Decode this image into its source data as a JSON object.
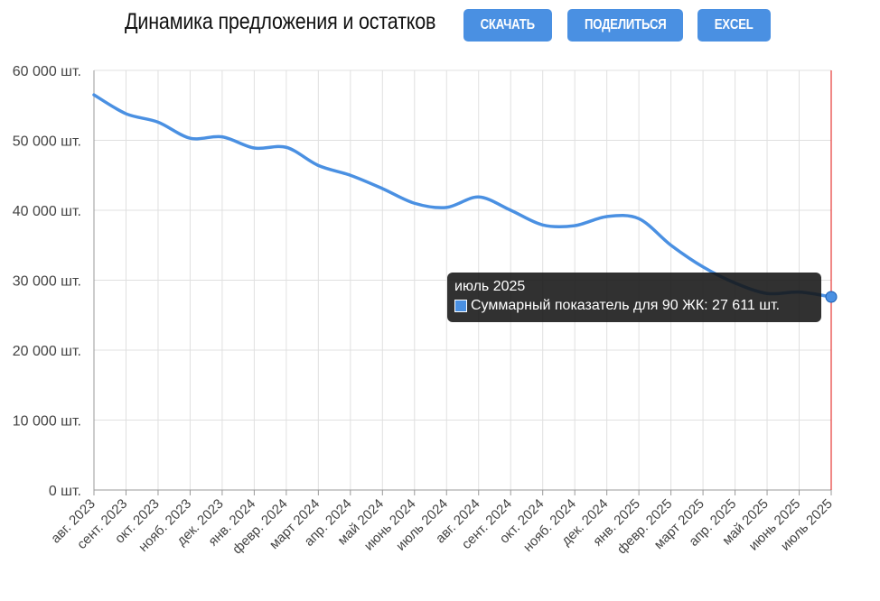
{
  "header": {
    "title": "Динамика предложения и остатков",
    "buttons": {
      "download": "СКАЧАТЬ",
      "share": "ПОДЕЛИТЬСЯ",
      "excel": "EXCEL"
    }
  },
  "colors": {
    "accent": "#4a90e2",
    "line": "#4a90e2",
    "grid": "#e0e0e0",
    "marker_line": "#e53935",
    "tooltip_bg": "#1e1e1e"
  },
  "chart_data": {
    "type": "line",
    "title": "Динамика предложения и остатков",
    "xlabel": "",
    "ylabel": "",
    "categories": [
      "авг. 2023",
      "сент. 2023",
      "окт. 2023",
      "нояб. 2023",
      "дек. 2023",
      "янв. 2024",
      "февр. 2024",
      "март 2024",
      "апр. 2024",
      "май 2024",
      "июнь 2024",
      "июль 2024",
      "авг. 2024",
      "сент. 2024",
      "окт. 2024",
      "нояб. 2024",
      "дек. 2024",
      "янв. 2025",
      "февр. 2025",
      "март 2025",
      "апр. 2025",
      "май 2025",
      "июнь 2025",
      "июль 2025"
    ],
    "series": [
      {
        "name": "Суммарный показатель для 90 ЖК",
        "values": [
          56500,
          53800,
          52600,
          50300,
          50500,
          48900,
          49000,
          46400,
          45000,
          43100,
          41000,
          40400,
          41900,
          40000,
          37900,
          37800,
          39100,
          38800,
          35000,
          31900,
          29600,
          28100,
          28300,
          27611
        ]
      }
    ],
    "ylim": [
      0,
      60000
    ],
    "yticks": [
      0,
      10000,
      20000,
      30000,
      40000,
      50000,
      60000
    ],
    "ytick_labels": [
      "0 шт.",
      "10 000 шт.",
      "20 000 шт.",
      "30 000 шт.",
      "40 000 шт.",
      "50 000 шт.",
      "60 000 шт."
    ],
    "grid": true,
    "legend": "none",
    "highlight_index": 23
  },
  "tooltip": {
    "title": "июль 2025",
    "label": "Суммарный показатель для 90 ЖК: 27 611 шт."
  }
}
